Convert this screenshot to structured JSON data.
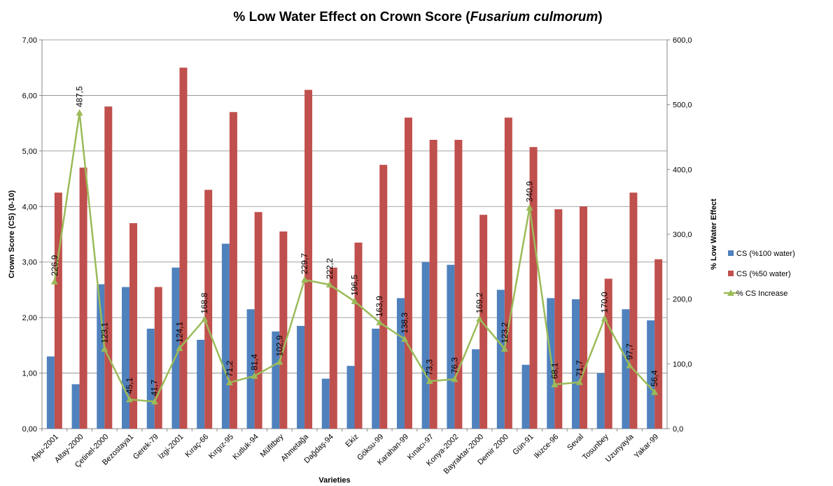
{
  "chart_data": {
    "type": "bar_line",
    "title": [
      "% Low Water Effect on Crown Score (",
      "Fusarium culmorum",
      ")"
    ],
    "x_label": "Varieties",
    "y_label": "Crown Score  (CS) (0-10)",
    "y2_label": "% Low Water Effect",
    "categories": [
      "Alpu-2001",
      "Altay-2000",
      "Çetinel-2000",
      "Bezostaya1",
      "Gerek-79",
      "İzgi-2001",
      "Kıraç-66",
      "Kırgız-95",
      "Kutluk-94",
      "Müfitbey",
      "Ahmetağa",
      "Dağdaş-94",
      "Ekiz",
      "Göksu-99",
      "Karahan-99",
      "Kınacı-97",
      "Konya-2002",
      "Bayraktar-2000",
      "Demir 2000",
      "Gün-91",
      "Ikizce-96",
      "Seval",
      "Tosunbey",
      "Uzunyayla",
      "Yakar-99"
    ],
    "series": [
      {
        "name": "CS (%100 water)",
        "type": "bar",
        "color": "#4f81bd",
        "values": [
          1.3,
          0.8,
          2.6,
          2.55,
          1.8,
          2.9,
          1.6,
          3.33,
          2.15,
          1.75,
          1.85,
          0.9,
          1.13,
          1.8,
          2.35,
          3.0,
          2.95,
          1.43,
          2.5,
          1.15,
          2.35,
          2.33,
          1.0,
          2.15,
          1.95
        ]
      },
      {
        "name": "CS (%50 water)",
        "type": "bar",
        "color": "#c0504d",
        "values": [
          4.25,
          4.7,
          5.8,
          3.7,
          2.55,
          6.5,
          4.3,
          5.7,
          3.9,
          3.55,
          6.1,
          2.9,
          3.35,
          4.75,
          5.6,
          5.2,
          5.2,
          3.85,
          5.6,
          5.07,
          3.95,
          4.0,
          2.7,
          4.25,
          3.05
        ]
      },
      {
        "name": "% CS Increase",
        "type": "line",
        "axis": "y2",
        "color": "#9bbb59",
        "values": [
          226.9,
          487.5,
          123.1,
          45.1,
          41.7,
          124.1,
          168.8,
          71.2,
          81.4,
          102.9,
          229.7,
          222.2,
          196.5,
          163.9,
          138.3,
          73.3,
          76.3,
          169.2,
          123.2,
          340.9,
          68.1,
          71.7,
          170.0,
          97.7,
          56.4
        ],
        "value_labels": [
          "226,9",
          "487,5",
          "123,1",
          "45,1",
          "41,7",
          "124,1",
          "168,8",
          "71,2",
          "81,4",
          "102,9",
          "229,7",
          "222,2",
          "196,5",
          "163,9",
          "138,3",
          "73,3",
          "76,3",
          "169,2",
          "123,2",
          "340,9",
          "68,1",
          "71,7",
          "170,0",
          "97,7",
          "56,4"
        ]
      }
    ],
    "ylim": [
      0,
      7
    ],
    "yticks": [
      {
        "value": 0,
        "label": "0,00"
      },
      {
        "value": 1,
        "label": "1,00"
      },
      {
        "value": 2,
        "label": "2,00"
      },
      {
        "value": 3,
        "label": "3,00"
      },
      {
        "value": 4,
        "label": "4,00"
      },
      {
        "value": 5,
        "label": "5,00"
      },
      {
        "value": 6,
        "label": "6,00"
      },
      {
        "value": 7,
        "label": "7,00"
      }
    ],
    "y2lim": [
      0,
      600
    ],
    "y2ticks": [
      {
        "value": 0,
        "label": "0,0"
      },
      {
        "value": 100,
        "label": "100,0"
      },
      {
        "value": 200,
        "label": "200,0"
      },
      {
        "value": 300,
        "label": "300,0"
      },
      {
        "value": 400,
        "label": "400,0"
      },
      {
        "value": 500,
        "label": "500,0"
      },
      {
        "value": 600,
        "label": "600,0"
      }
    ],
    "grid": true,
    "legend": "right"
  }
}
